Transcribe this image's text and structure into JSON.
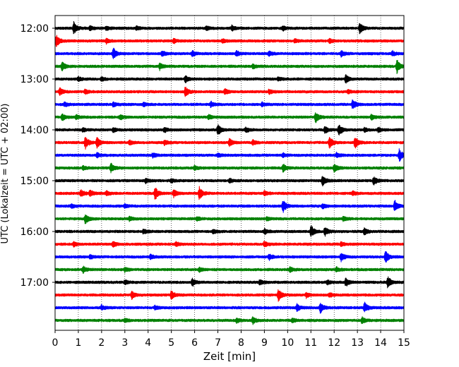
{
  "chart_data": {
    "type": "line",
    "title": "",
    "xlabel": "Zeit  [min]",
    "ylabel": "UTC (Lokalzeit = UTC + 02:00)",
    "xlim": [
      0,
      15
    ],
    "x_ticks": [
      "0",
      "1",
      "2",
      "3",
      "4",
      "5",
      "6",
      "7",
      "8",
      "9",
      "10",
      "11",
      "12",
      "13",
      "14",
      "15"
    ],
    "y_ticks": [
      {
        "row": 0,
        "label": "12:00"
      },
      {
        "row": 4,
        "label": "13:00"
      },
      {
        "row": 8,
        "label": "14:00"
      },
      {
        "row": 12,
        "label": "15:00"
      },
      {
        "row": 16,
        "label": "16:00"
      },
      {
        "row": 20,
        "label": "17:00"
      }
    ],
    "grid": "vertical dotted",
    "row_interval_min": 15,
    "trace_colors": [
      "#000000",
      "#ff0000",
      "#0000ff",
      "#008000"
    ],
    "traces": [
      {
        "start": "12:00",
        "events": [
          [
            0.8,
            1.0
          ],
          [
            1.5,
            0.35
          ],
          [
            2.2,
            0.3
          ],
          [
            3.5,
            0.3
          ],
          [
            6.5,
            0.35
          ],
          [
            7.6,
            0.4
          ],
          [
            9.8,
            0.35
          ],
          [
            13.1,
            0.9
          ]
        ]
      },
      {
        "start": "12:15",
        "events": [
          [
            0.05,
            1.0
          ],
          [
            2.2,
            0.4
          ],
          [
            5.1,
            0.35
          ],
          [
            7.2,
            0.3
          ],
          [
            10.3,
            0.3
          ],
          [
            11.8,
            0.35
          ]
        ]
      },
      {
        "start": "12:30",
        "events": [
          [
            2.5,
            0.9
          ],
          [
            4.6,
            0.45
          ],
          [
            5.9,
            0.4
          ],
          [
            7.8,
            0.4
          ],
          [
            9.2,
            0.35
          ],
          [
            12.3,
            0.45
          ],
          [
            14.5,
            0.4
          ]
        ]
      },
      {
        "start": "12:45",
        "events": [
          [
            0.3,
            0.7
          ],
          [
            4.5,
            0.5
          ],
          [
            8.5,
            0.35
          ],
          [
            14.7,
            1.0
          ]
        ]
      },
      {
        "start": "13:00",
        "events": [
          [
            1.0,
            0.35
          ],
          [
            2.0,
            0.3
          ],
          [
            5.6,
            0.55
          ],
          [
            9.6,
            0.3
          ],
          [
            12.5,
            0.7
          ]
        ]
      },
      {
        "start": "13:15",
        "events": [
          [
            0.2,
            0.6
          ],
          [
            1.3,
            0.4
          ],
          [
            5.6,
            0.8
          ],
          [
            7.3,
            0.45
          ],
          [
            9.2,
            0.35
          ],
          [
            12.6,
            0.3
          ]
        ]
      },
      {
        "start": "13:30",
        "events": [
          [
            0.4,
            0.35
          ],
          [
            2.5,
            0.35
          ],
          [
            3.8,
            0.3
          ],
          [
            6.7,
            0.4
          ],
          [
            8.9,
            0.3
          ],
          [
            12.8,
            0.8
          ]
        ]
      },
      {
        "start": "13:45",
        "events": [
          [
            0.3,
            0.5
          ],
          [
            0.9,
            0.35
          ],
          [
            2.8,
            0.35
          ],
          [
            6.6,
            0.35
          ],
          [
            11.2,
            0.9
          ],
          [
            13.6,
            0.4
          ]
        ]
      },
      {
        "start": "14:00",
        "events": [
          [
            1.2,
            0.3
          ],
          [
            2.5,
            0.4
          ],
          [
            4.7,
            0.35
          ],
          [
            7.0,
            0.95
          ],
          [
            8.2,
            0.4
          ],
          [
            11.6,
            0.6
          ],
          [
            12.2,
            0.9
          ],
          [
            13.3,
            0.3
          ],
          [
            13.9,
            0.35
          ]
        ]
      },
      {
        "start": "14:15",
        "events": [
          [
            1.3,
            1.0
          ],
          [
            1.8,
            0.8
          ],
          [
            3.2,
            0.35
          ],
          [
            4.7,
            0.4
          ],
          [
            7.5,
            0.6
          ],
          [
            8.5,
            0.4
          ],
          [
            11.8,
            0.9
          ],
          [
            12.9,
            1.0
          ]
        ]
      },
      {
        "start": "14:30",
        "events": [
          [
            1.8,
            0.35
          ],
          [
            4.2,
            0.35
          ],
          [
            7.0,
            0.3
          ],
          [
            9.8,
            0.3
          ],
          [
            12.1,
            0.35
          ],
          [
            14.8,
            1.0
          ]
        ]
      },
      {
        "start": "14:45",
        "events": [
          [
            1.2,
            0.35
          ],
          [
            2.4,
            0.7
          ],
          [
            6.0,
            0.35
          ],
          [
            9.8,
            0.6
          ],
          [
            12.0,
            0.7
          ]
        ]
      },
      {
        "start": "15:00",
        "events": [
          [
            3.9,
            0.35
          ],
          [
            5.0,
            0.3
          ],
          [
            7.5,
            0.35
          ],
          [
            11.5,
            0.8
          ],
          [
            13.7,
            0.65
          ]
        ]
      },
      {
        "start": "15:15",
        "events": [
          [
            1.1,
            0.55
          ],
          [
            1.5,
            0.5
          ],
          [
            2.2,
            0.35
          ],
          [
            4.3,
            1.0
          ],
          [
            5.1,
            0.6
          ],
          [
            6.2,
            1.0
          ],
          [
            9.0,
            0.35
          ],
          [
            12.8,
            0.3
          ]
        ]
      },
      {
        "start": "15:30",
        "events": [
          [
            0.7,
            0.3
          ],
          [
            3.0,
            0.3
          ],
          [
            9.8,
            1.0
          ],
          [
            11.5,
            0.4
          ],
          [
            14.6,
            0.9
          ]
        ]
      },
      {
        "start": "15:45",
        "events": [
          [
            1.3,
            0.8
          ],
          [
            3.2,
            0.35
          ],
          [
            6.1,
            0.3
          ],
          [
            9.1,
            0.3
          ],
          [
            12.4,
            0.35
          ]
        ]
      },
      {
        "start": "16:00",
        "events": [
          [
            3.8,
            0.35
          ],
          [
            6.8,
            0.3
          ],
          [
            9.0,
            0.45
          ],
          [
            11.0,
            1.0
          ],
          [
            11.6,
            0.7
          ],
          [
            13.3,
            0.55
          ]
        ]
      },
      {
        "start": "16:15",
        "events": [
          [
            0.8,
            0.35
          ],
          [
            2.5,
            0.45
          ],
          [
            5.2,
            0.35
          ],
          [
            9.0,
            0.4
          ],
          [
            12.3,
            0.35
          ]
        ]
      },
      {
        "start": "16:30",
        "events": [
          [
            1.5,
            0.35
          ],
          [
            4.1,
            0.35
          ],
          [
            9.2,
            0.45
          ],
          [
            12.3,
            0.7
          ],
          [
            14.2,
            1.0
          ]
        ]
      },
      {
        "start": "16:45",
        "events": [
          [
            1.2,
            0.5
          ],
          [
            3.0,
            0.35
          ],
          [
            6.2,
            0.35
          ],
          [
            10.1,
            0.45
          ],
          [
            12.1,
            0.35
          ]
        ]
      },
      {
        "start": "17:00",
        "events": [
          [
            3.0,
            0.35
          ],
          [
            5.9,
            0.6
          ],
          [
            8.8,
            0.4
          ],
          [
            11.7,
            0.3
          ],
          [
            12.5,
            0.7
          ],
          [
            14.3,
            0.95
          ]
        ]
      },
      {
        "start": "17:15",
        "events": [
          [
            3.3,
            0.6
          ],
          [
            5.0,
            0.75
          ],
          [
            9.6,
            1.0
          ],
          [
            10.8,
            0.4
          ],
          [
            11.8,
            0.35
          ]
        ]
      },
      {
        "start": "17:30",
        "events": [
          [
            2.0,
            0.4
          ],
          [
            4.3,
            0.3
          ],
          [
            10.4,
            0.55
          ],
          [
            11.4,
            0.8
          ],
          [
            13.3,
            0.8
          ]
        ]
      },
      {
        "start": "17:45",
        "events": [
          [
            3.0,
            0.3
          ],
          [
            7.8,
            0.35
          ],
          [
            8.5,
            0.55
          ],
          [
            10.2,
            0.35
          ],
          [
            13.2,
            0.5
          ]
        ]
      }
    ]
  }
}
